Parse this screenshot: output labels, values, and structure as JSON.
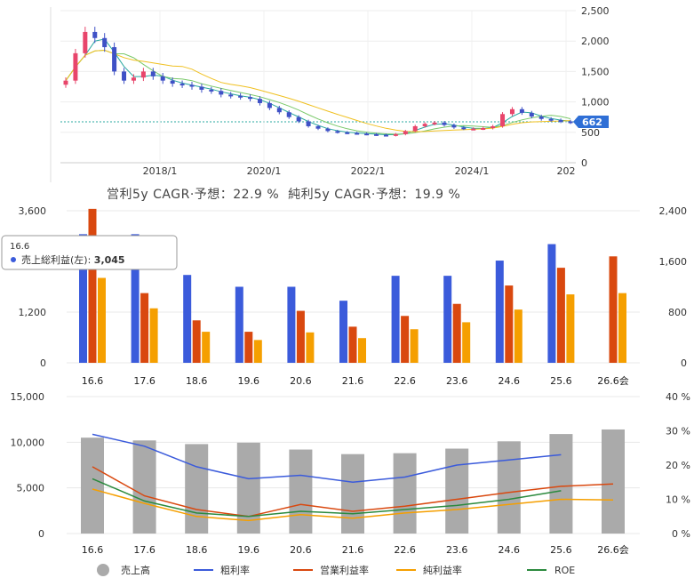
{
  "cagr_text": "営利5y CAGR·予想：22.9 %  純利5y CAGR·予想：19.9 %",
  "chart_data": [
    {
      "type": "candlestick",
      "y_ticks": [
        "2,500",
        "2,000",
        "1,500",
        "1,000",
        "500",
        "0"
      ],
      "ylim": [
        0,
        2500
      ],
      "x_ticks": [
        "2018/1",
        "2020/1",
        "2022/1",
        "2024/1",
        "202"
      ],
      "last_price": "662",
      "price_series": [
        1350,
        1800,
        2150,
        2050,
        1900,
        1500,
        1350,
        1400,
        1500,
        1420,
        1350,
        1300,
        1280,
        1250,
        1200,
        1180,
        1120,
        1100,
        1080,
        1050,
        980,
        900,
        830,
        750,
        680,
        600,
        560,
        520,
        500,
        490,
        480,
        470,
        460,
        450,
        470,
        520,
        600,
        640,
        660,
        620,
        580,
        560,
        560,
        570,
        600,
        800,
        880,
        820,
        760,
        720,
        700,
        680,
        662
      ],
      "colors": {
        "up": "#e8456b",
        "down": "#3f51c6",
        "ma_short": "#2aa8a0",
        "ma_mid": "#7ac96a",
        "ma_long": "#f0c020",
        "last": "#2f6fd6"
      }
    },
    {
      "type": "bar",
      "categories": [
        "16.6",
        "17.6",
        "18.6",
        "19.6",
        "20.6",
        "21.6",
        "22.6",
        "23.6",
        "24.6",
        "25.6",
        "26.6会"
      ],
      "left_ticks": [
        "3,600",
        "1,200",
        "0"
      ],
      "left_ylim": [
        0,
        3600
      ],
      "right_ticks": [
        "2,400",
        "1,600",
        "800",
        "0"
      ],
      "right_ylim": [
        0,
        2400
      ],
      "series": [
        {
          "name": "売上総利益",
          "axis": "left",
          "color": "#3b5bdb",
          "values": [
            3045,
            3045,
            2080,
            1800,
            1800,
            1470,
            2060,
            2060,
            2420,
            2810,
            null
          ]
        },
        {
          "name": "",
          "axis": "right",
          "color": "#d9480f",
          "values": [
            2430,
            1100,
            670,
            490,
            820,
            570,
            740,
            930,
            1220,
            1500,
            1680
          ]
        },
        {
          "name": "",
          "axis": "right",
          "color": "#f59f00",
          "values": [
            1340,
            860,
            490,
            360,
            480,
            390,
            530,
            640,
            840,
            1080,
            1100
          ]
        }
      ],
      "tooltip": {
        "title": "16.6",
        "label": "売上総利益(左): ",
        "value": "3,045"
      }
    },
    {
      "type": "bar+line",
      "categories": [
        "16.6",
        "17.6",
        "18.6",
        "19.6",
        "20.6",
        "21.6",
        "22.6",
        "23.6",
        "24.6",
        "25.6",
        "26.6会"
      ],
      "left_ticks": [
        "15,000",
        "10,000",
        "5,000",
        "0"
      ],
      "left_ylim": [
        0,
        15000
      ],
      "right_ticks": [
        "40 %",
        "30 %",
        "20 %",
        "10 %",
        "0 %"
      ],
      "right_ylim": [
        0,
        40
      ],
      "bars": {
        "name": "売上高",
        "color": "#aaaaaa",
        "values": [
          10500,
          10200,
          9800,
          9950,
          9200,
          8700,
          8800,
          9300,
          10100,
          10900,
          11400
        ]
      },
      "lines": [
        {
          "name": "粗利率",
          "color": "#3b5bdb",
          "values": [
            29,
            25.5,
            19.5,
            16,
            17,
            15,
            16.5,
            20,
            21.5,
            23,
            null
          ]
        },
        {
          "name": "営業利益率",
          "color": "#d9480f",
          "values": [
            19.5,
            11,
            7,
            5,
            8.5,
            6.5,
            8,
            10,
            12,
            13.8,
            14.5
          ]
        },
        {
          "name": "純利益率",
          "color": "#f59f00",
          "values": [
            13,
            8.8,
            5,
            3.8,
            5.5,
            4.5,
            6,
            7,
            8.5,
            10,
            9.8
          ]
        },
        {
          "name": "ROE",
          "color": "#2b8a3e",
          "values": [
            16,
            9.5,
            6,
            5,
            6.5,
            5.8,
            7,
            8.2,
            10,
            12.5,
            null
          ]
        }
      ]
    }
  ]
}
